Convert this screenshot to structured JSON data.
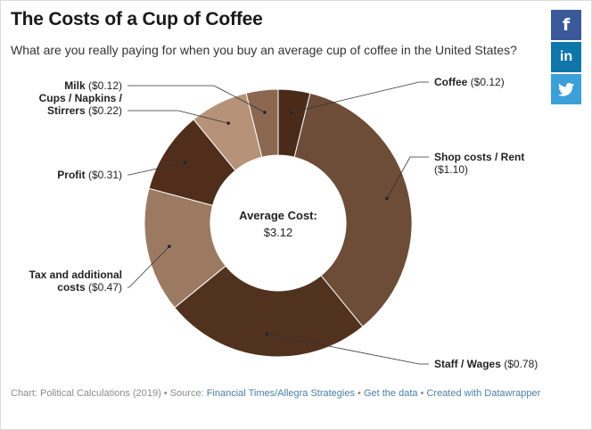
{
  "title": "The Costs of a Cup of Coffee",
  "subtitle": "What are you really paying for when you buy an average cup of coffee in the United States?",
  "share": {
    "facebook_glyph": "f",
    "linkedin_glyph": "in",
    "icons": [
      "facebook-icon",
      "linkedin-icon",
      "twitter-icon"
    ]
  },
  "center_label": {
    "heading": "Average Cost:",
    "value": "$3.12"
  },
  "chart_data": {
    "type": "pie",
    "donut": true,
    "total": 3.12,
    "slices": [
      {
        "name_lines": [
          "Coffee"
        ],
        "value_text": "($0.12)",
        "value": 0.12,
        "color": "#4a2b1a"
      },
      {
        "name_lines": [
          "Shop costs / Rent"
        ],
        "value_text": "($1.10)",
        "value": 1.1,
        "color": "#6d4c38"
      },
      {
        "name_lines": [
          "Staff / Wages"
        ],
        "value_text": "($0.78)",
        "value": 0.78,
        "color": "#51321f"
      },
      {
        "name_lines": [
          "Tax and additional",
          "costs"
        ],
        "value_text": "($0.47)",
        "value": 0.47,
        "color": "#9c7a62"
      },
      {
        "name_lines": [
          "Profit"
        ],
        "value_text": "($0.31)",
        "value": 0.31,
        "color": "#502e1b"
      },
      {
        "name_lines": [
          "Cups / Napkins /",
          "Stirrers"
        ],
        "value_text": "($0.22)",
        "value": 0.22,
        "color": "#b69278"
      },
      {
        "name_lines": [
          "Milk"
        ],
        "value_text": "($0.12)",
        "value": 0.12,
        "color": "#8b6750"
      }
    ]
  },
  "footer": {
    "prefix": "Chart: Political Calculations (2019) • Source: ",
    "source_link": "Financial Times/Allegra Strategies",
    "sep1": " • ",
    "data_link": "Get the data",
    "sep2": " • ",
    "credit_link": "Created with Datawrapper"
  }
}
